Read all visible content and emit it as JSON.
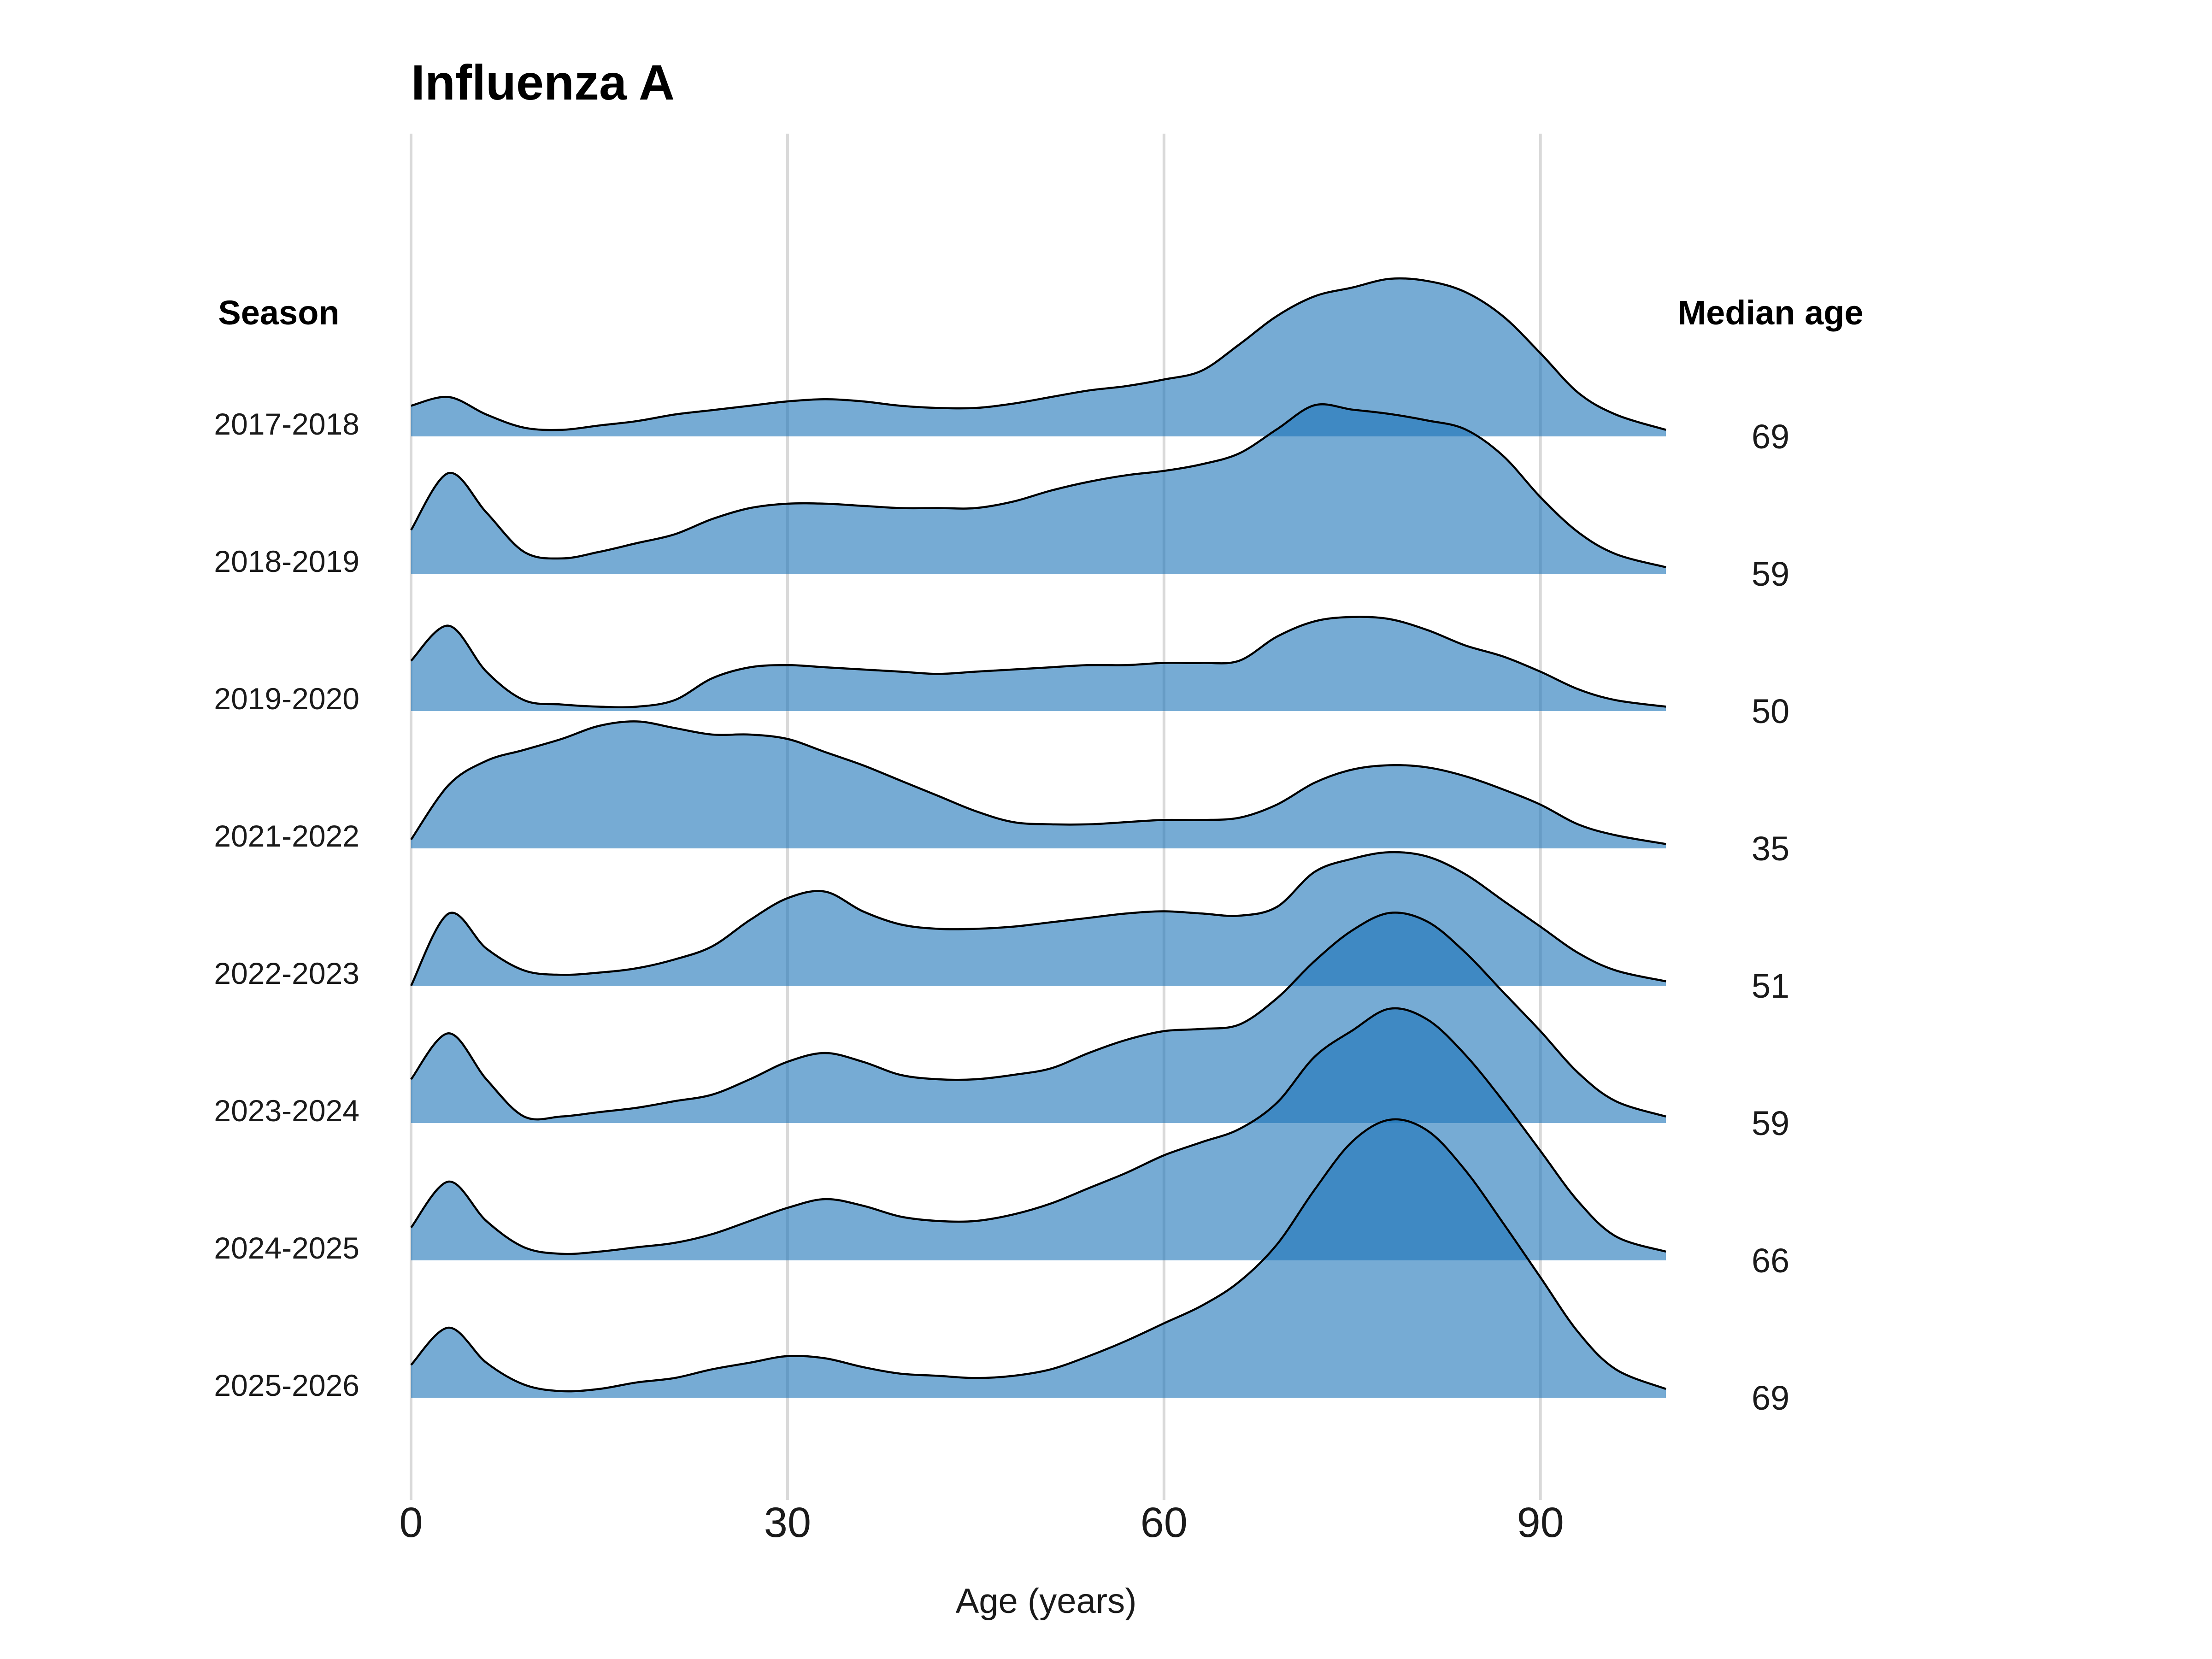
{
  "chart_data": {
    "type": "area",
    "title": "Influenza A",
    "xlabel": "Age (years)",
    "xlim": [
      0,
      100
    ],
    "x_ticks": [
      0,
      30,
      60,
      90
    ],
    "grid": true,
    "row_header": "Season",
    "value_header": "Median age",
    "fill_color": "#1a73b8",
    "line_color": "#000000",
    "x": [
      0,
      3,
      6,
      9,
      12,
      15,
      18,
      21,
      24,
      27,
      30,
      33,
      36,
      39,
      42,
      45,
      48,
      51,
      54,
      57,
      60,
      63,
      66,
      69,
      72,
      75,
      78,
      81,
      84,
      87,
      90,
      93,
      96,
      100
    ],
    "series": [
      {
        "name": "2017-2018",
        "median_age": "69",
        "density": [
          0.14,
          0.18,
          0.1,
          0.04,
          0.03,
          0.05,
          0.07,
          0.1,
          0.12,
          0.14,
          0.16,
          0.17,
          0.16,
          0.14,
          0.13,
          0.13,
          0.15,
          0.18,
          0.21,
          0.23,
          0.26,
          0.3,
          0.42,
          0.55,
          0.64,
          0.68,
          0.72,
          0.71,
          0.66,
          0.55,
          0.38,
          0.2,
          0.1,
          0.03
        ]
      },
      {
        "name": "2018-2019",
        "median_age": "59",
        "density": [
          0.2,
          0.46,
          0.28,
          0.1,
          0.07,
          0.1,
          0.14,
          0.18,
          0.25,
          0.3,
          0.32,
          0.32,
          0.31,
          0.3,
          0.3,
          0.3,
          0.33,
          0.38,
          0.42,
          0.45,
          0.47,
          0.5,
          0.55,
          0.66,
          0.77,
          0.75,
          0.73,
          0.7,
          0.66,
          0.54,
          0.35,
          0.19,
          0.09,
          0.03
        ]
      },
      {
        "name": "2019-2020",
        "median_age": "50",
        "density": [
          0.23,
          0.39,
          0.18,
          0.05,
          0.03,
          0.02,
          0.02,
          0.05,
          0.15,
          0.2,
          0.21,
          0.2,
          0.19,
          0.18,
          0.17,
          0.18,
          0.19,
          0.2,
          0.21,
          0.21,
          0.22,
          0.22,
          0.23,
          0.34,
          0.41,
          0.43,
          0.42,
          0.37,
          0.3,
          0.25,
          0.18,
          0.1,
          0.05,
          0.02
        ]
      },
      {
        "name": "2021-2022",
        "median_age": "35",
        "density": [
          0.04,
          0.29,
          0.4,
          0.45,
          0.5,
          0.56,
          0.58,
          0.55,
          0.52,
          0.52,
          0.5,
          0.44,
          0.38,
          0.31,
          0.24,
          0.17,
          0.12,
          0.11,
          0.11,
          0.12,
          0.13,
          0.13,
          0.14,
          0.2,
          0.3,
          0.36,
          0.38,
          0.37,
          0.33,
          0.27,
          0.2,
          0.11,
          0.06,
          0.02
        ]
      },
      {
        "name": "2022-2023",
        "median_age": "51",
        "density": [
          0.0,
          0.33,
          0.17,
          0.07,
          0.05,
          0.06,
          0.08,
          0.12,
          0.18,
          0.3,
          0.4,
          0.43,
          0.34,
          0.28,
          0.26,
          0.26,
          0.27,
          0.29,
          0.31,
          0.33,
          0.34,
          0.33,
          0.32,
          0.36,
          0.52,
          0.58,
          0.61,
          0.59,
          0.51,
          0.39,
          0.27,
          0.15,
          0.07,
          0.02
        ]
      },
      {
        "name": "2023-2024",
        "median_age": "59",
        "density": [
          0.2,
          0.41,
          0.2,
          0.03,
          0.03,
          0.05,
          0.07,
          0.1,
          0.13,
          0.2,
          0.28,
          0.32,
          0.28,
          0.22,
          0.2,
          0.2,
          0.22,
          0.25,
          0.32,
          0.38,
          0.42,
          0.43,
          0.45,
          0.57,
          0.74,
          0.88,
          0.96,
          0.92,
          0.78,
          0.6,
          0.42,
          0.23,
          0.1,
          0.03
        ]
      },
      {
        "name": "2024-2025",
        "median_age": "66",
        "density": [
          0.15,
          0.36,
          0.18,
          0.06,
          0.03,
          0.04,
          0.06,
          0.08,
          0.12,
          0.18,
          0.24,
          0.28,
          0.25,
          0.2,
          0.18,
          0.18,
          0.21,
          0.26,
          0.33,
          0.4,
          0.48,
          0.54,
          0.6,
          0.72,
          0.93,
          1.05,
          1.15,
          1.1,
          0.94,
          0.73,
          0.5,
          0.27,
          0.11,
          0.04
        ]
      },
      {
        "name": "2025-2026",
        "median_age": "69",
        "density": [
          0.15,
          0.32,
          0.16,
          0.06,
          0.03,
          0.04,
          0.07,
          0.09,
          0.13,
          0.16,
          0.19,
          0.18,
          0.14,
          0.11,
          0.1,
          0.09,
          0.1,
          0.13,
          0.19,
          0.26,
          0.34,
          0.42,
          0.53,
          0.7,
          0.95,
          1.17,
          1.27,
          1.22,
          1.04,
          0.8,
          0.55,
          0.3,
          0.13,
          0.04
        ]
      }
    ]
  }
}
